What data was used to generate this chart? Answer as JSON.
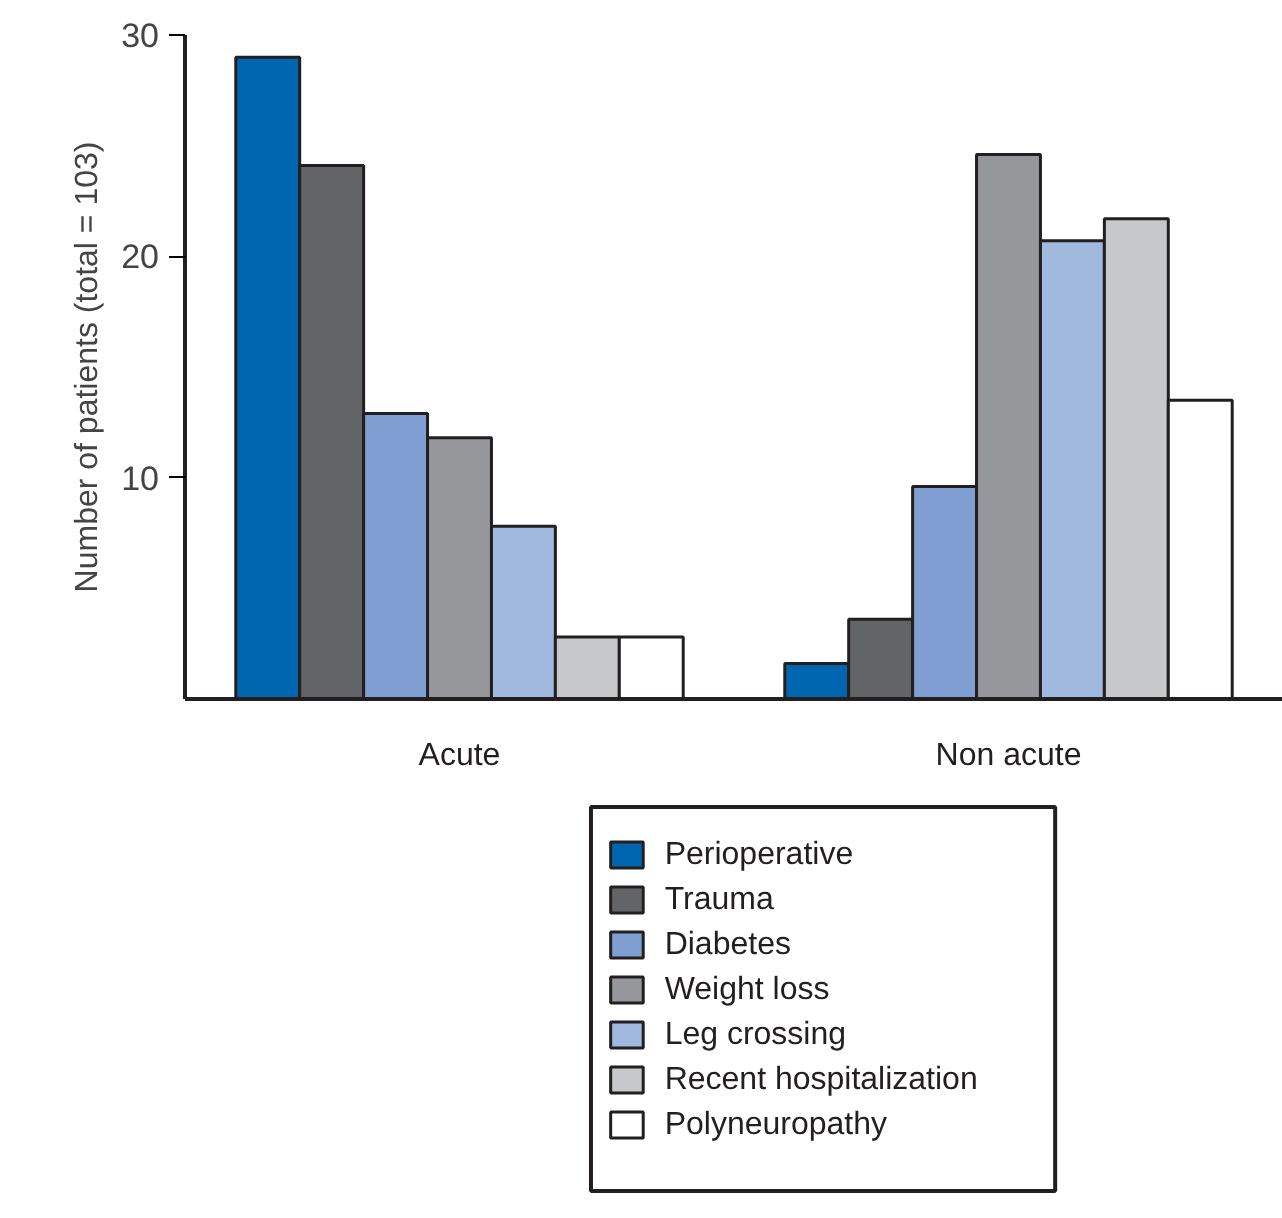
{
  "chart_data": {
    "type": "bar",
    "ylabel": "Number of patients (total = 103)",
    "categories": [
      "Acute",
      "Non acute"
    ],
    "series": [
      {
        "name": "Perioperative",
        "color": "#0066b0",
        "values": [
          29,
          1.6
        ]
      },
      {
        "name": "Trauma",
        "color": "#636466",
        "values": [
          24.1,
          3.6
        ]
      },
      {
        "name": "Diabetes",
        "color": "#7f9fd3",
        "values": [
          12.9,
          9.6
        ]
      },
      {
        "name": "Weight loss",
        "color": "#96979b",
        "values": [
          11.8,
          24.6
        ]
      },
      {
        "name": "Leg crossing",
        "color": "#a1b8df",
        "values": [
          7.8,
          20.7
        ]
      },
      {
        "name": "Recent hospitalization",
        "color": "#c7c8ca",
        "values": [
          2.8,
          21.7
        ]
      },
      {
        "name": "Polyneuropathy",
        "color": "#ffffff",
        "values": [
          2.8,
          13.5
        ]
      }
    ],
    "ylim": [
      0,
      30
    ],
    "yticks": [
      10,
      20,
      30
    ],
    "grid": false,
    "legend": "bottom"
  }
}
